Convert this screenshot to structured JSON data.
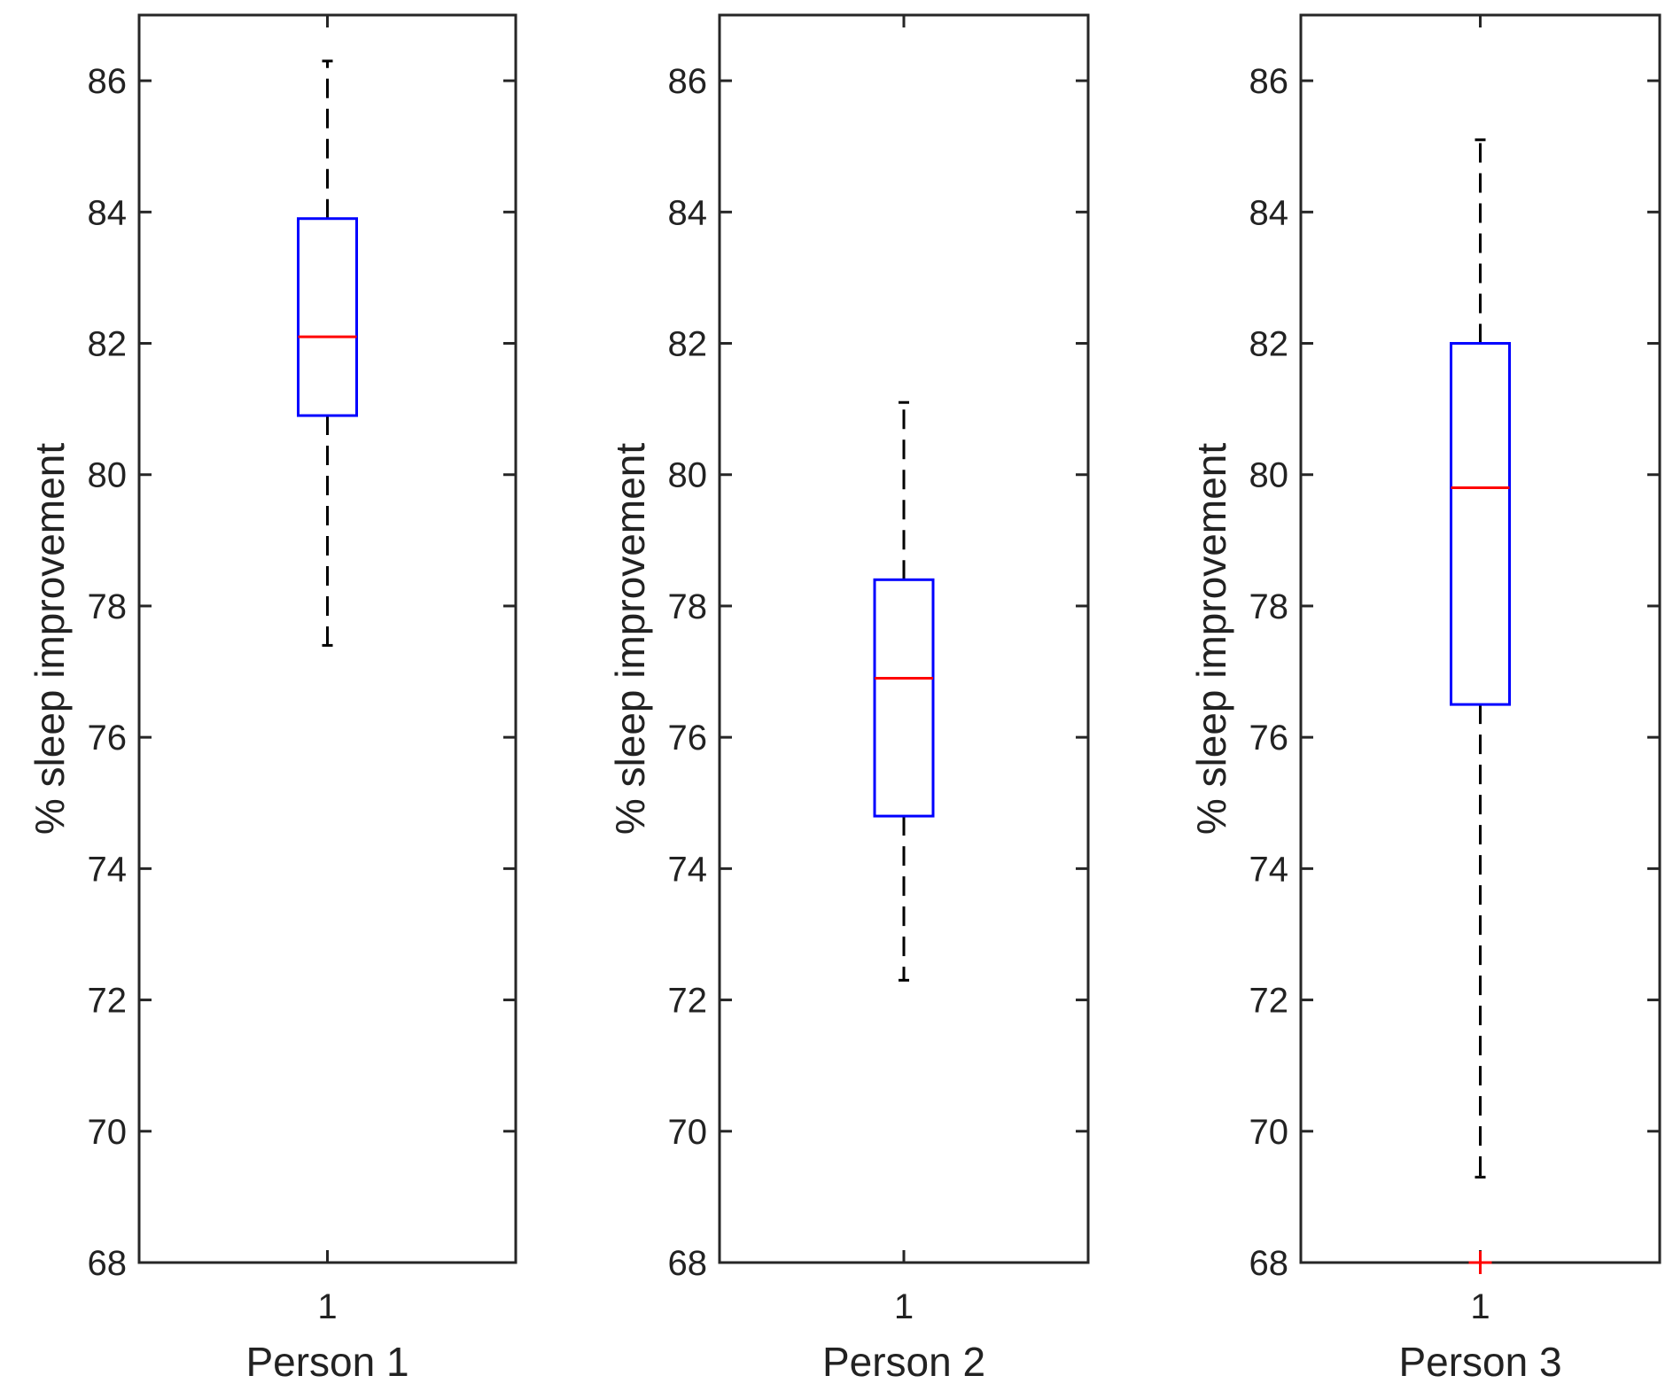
{
  "chart_data": [
    {
      "type": "boxplot",
      "xlabel": "Person 1",
      "ylabel": "% sleep improvement",
      "xtick": "1",
      "ylim": [
        68,
        87
      ],
      "yticks": [
        68,
        70,
        72,
        74,
        76,
        78,
        80,
        82,
        84,
        86
      ],
      "box": {
        "whisker_low": 77.4,
        "q1": 80.9,
        "median": 82.1,
        "q3": 83.9,
        "whisker_high": 86.3
      },
      "outliers": []
    },
    {
      "type": "boxplot",
      "xlabel": "Person 2",
      "ylabel": "% sleep improvement",
      "xtick": "1",
      "ylim": [
        68,
        87
      ],
      "yticks": [
        68,
        70,
        72,
        74,
        76,
        78,
        80,
        82,
        84,
        86
      ],
      "box": {
        "whisker_low": 72.3,
        "q1": 74.8,
        "median": 76.9,
        "q3": 78.4,
        "whisker_high": 81.1
      },
      "outliers": []
    },
    {
      "type": "boxplot",
      "xlabel": "Person 3",
      "ylabel": "% sleep improvement",
      "xtick": "1",
      "ylim": [
        68,
        87
      ],
      "yticks": [
        68,
        70,
        72,
        74,
        76,
        78,
        80,
        82,
        84,
        86
      ],
      "box": {
        "whisker_low": 69.3,
        "q1": 76.5,
        "median": 79.8,
        "q3": 82.0,
        "whisker_high": 85.1
      },
      "outliers": [
        68.0
      ]
    }
  ],
  "colors": {
    "box": "#0000ff",
    "median": "#ff0000",
    "whisker": "#000000",
    "outlier": "#ff0000",
    "axis": "#262626"
  }
}
